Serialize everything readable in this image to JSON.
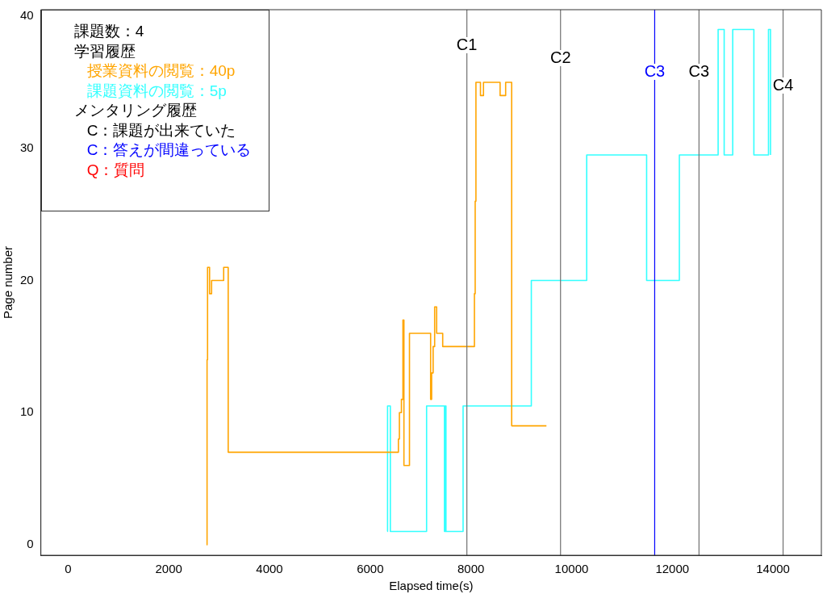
{
  "chart_data": {
    "type": "step",
    "xlabel": "Elapsed time(s)",
    "ylabel": "Page number",
    "xlim": [
      -540,
      14960
    ],
    "ylim": [
      -0.8,
      40.5
    ],
    "xticks": [
      0,
      2000,
      4000,
      6000,
      8000,
      10000,
      12000,
      14000
    ],
    "yticks": [
      0,
      10,
      20,
      30,
      40
    ],
    "grid": false,
    "legend": "top left",
    "marker": "none",
    "series": [
      {
        "name": "授業資料の閲覧：40p",
        "color": "#ffa500",
        "x": [
          2750,
          2760,
          2770,
          2810,
          2850,
          3090,
          3180,
          6560,
          6580,
          6620,
          6650,
          6670,
          6780,
          7200,
          7220,
          7250,
          7280,
          7320,
          7440,
          8070,
          8085,
          8100,
          8190,
          8250,
          8580,
          8690,
          8810,
          9500
        ],
        "values": [
          0,
          14,
          21,
          19,
          20,
          21,
          7,
          8,
          10,
          11,
          17,
          6,
          16,
          11,
          13,
          15,
          18,
          16,
          15,
          19,
          26,
          35,
          34,
          35,
          34,
          35,
          9,
          9
        ]
      },
      {
        "name": "課題資料の閲覧：5p",
        "color": "#33ffff",
        "x": [
          6340,
          6345,
          6400,
          7120,
          7475,
          7490,
          7505,
          7845,
          9200,
          10300,
          11490,
          12140,
          12910,
          13030,
          13200,
          13620,
          13910,
          13950
        ],
        "values": [
          1,
          10.5,
          1,
          10.5,
          1,
          10.5,
          1,
          10.5,
          20,
          29.5,
          20,
          29.5,
          39,
          29.5,
          39,
          29.5,
          39,
          29.5
        ]
      }
    ],
    "ref_lines": [
      {
        "axis": "x",
        "value": 7920,
        "label": "C1",
        "color": "#707070"
      },
      {
        "axis": "x",
        "value": 9780,
        "label": "C2",
        "color": "#707070"
      },
      {
        "axis": "x",
        "value": 11650,
        "label": "C3",
        "color": "#0000ff"
      },
      {
        "axis": "x",
        "value": 12530,
        "label": "C3",
        "color": "#707070"
      },
      {
        "axis": "x",
        "value": 14200,
        "label": "C4",
        "color": "#707070"
      }
    ],
    "annotations": [
      "課題数：4",
      "学習履歴",
      "メンタリング履歴",
      "C：課題が出来ていた",
      "C：答えが間違っている",
      "Q：質問"
    ]
  }
}
